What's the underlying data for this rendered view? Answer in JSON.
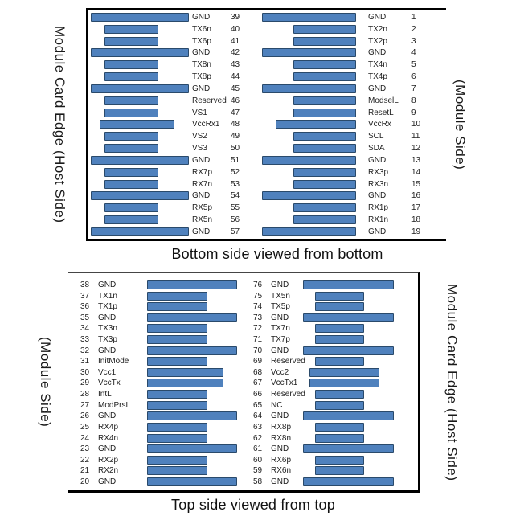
{
  "colors": {
    "pad_fill": "#4f81bd",
    "pad_border": "#2a4a6b",
    "panel_border": "#000000"
  },
  "panels": [
    {
      "title": "Bottom side viewed from bottom",
      "left_label": "Module Card Edge (Host Side)",
      "right_label": "(Module Side)",
      "columns": [
        {
          "order": "bar-first",
          "pins": [
            {
              "num": 39,
              "name": "GND",
              "size": "long"
            },
            {
              "num": 40,
              "name": "TX6n",
              "size": "short"
            },
            {
              "num": 41,
              "name": "TX6p",
              "size": "short"
            },
            {
              "num": 42,
              "name": "GND",
              "size": "long"
            },
            {
              "num": 43,
              "name": "TX8n",
              "size": "short"
            },
            {
              "num": 44,
              "name": "TX8p",
              "size": "short"
            },
            {
              "num": 45,
              "name": "GND",
              "size": "long"
            },
            {
              "num": 46,
              "name": "Reserved",
              "size": "short"
            },
            {
              "num": 47,
              "name": "VS1",
              "size": "short"
            },
            {
              "num": 48,
              "name": "VccRx1",
              "size": "med"
            },
            {
              "num": 49,
              "name": "VS2",
              "size": "short"
            },
            {
              "num": 50,
              "name": "VS3",
              "size": "short"
            },
            {
              "num": 51,
              "name": "GND",
              "size": "long"
            },
            {
              "num": 52,
              "name": "RX7p",
              "size": "short"
            },
            {
              "num": 53,
              "name": "RX7n",
              "size": "short"
            },
            {
              "num": 54,
              "name": "GND",
              "size": "long"
            },
            {
              "num": 55,
              "name": "RX5p",
              "size": "short"
            },
            {
              "num": 56,
              "name": "RX5n",
              "size": "short"
            },
            {
              "num": 57,
              "name": "GND",
              "size": "long"
            }
          ]
        },
        {
          "order": "bar-first",
          "pins": [
            {
              "num": 1,
              "name": "GND",
              "size": "long"
            },
            {
              "num": 2,
              "name": "TX2n",
              "size": "short"
            },
            {
              "num": 3,
              "name": "TX2p",
              "size": "short"
            },
            {
              "num": 4,
              "name": "GND",
              "size": "long"
            },
            {
              "num": 5,
              "name": "TX4n",
              "size": "short"
            },
            {
              "num": 6,
              "name": "TX4p",
              "size": "short"
            },
            {
              "num": 7,
              "name": "GND",
              "size": "long"
            },
            {
              "num": 8,
              "name": "ModselL",
              "size": "short"
            },
            {
              "num": 9,
              "name": "ResetL",
              "size": "short"
            },
            {
              "num": 10,
              "name": "VccRx",
              "size": "med"
            },
            {
              "num": 11,
              "name": "SCL",
              "size": "short"
            },
            {
              "num": 12,
              "name": "SDA",
              "size": "short"
            },
            {
              "num": 13,
              "name": "GND",
              "size": "long"
            },
            {
              "num": 14,
              "name": "RX3p",
              "size": "short"
            },
            {
              "num": 15,
              "name": "RX3n",
              "size": "short"
            },
            {
              "num": 16,
              "name": "GND",
              "size": "long"
            },
            {
              "num": 17,
              "name": "RX1p",
              "size": "short"
            },
            {
              "num": 18,
              "name": "RX1n",
              "size": "short"
            },
            {
              "num": 19,
              "name": "GND",
              "size": "long"
            }
          ]
        }
      ]
    },
    {
      "title": "Top side viewed from top",
      "left_label": "(Module Side)",
      "right_label": "Module Card Edge (Host Side)",
      "columns": [
        {
          "order": "num-first",
          "pins": [
            {
              "num": 38,
              "name": "GND",
              "size": "long"
            },
            {
              "num": 37,
              "name": "TX1n",
              "size": "short"
            },
            {
              "num": 36,
              "name": "TX1p",
              "size": "short"
            },
            {
              "num": 35,
              "name": "GND",
              "size": "long"
            },
            {
              "num": 34,
              "name": "TX3n",
              "size": "short"
            },
            {
              "num": 33,
              "name": "TX3p",
              "size": "short"
            },
            {
              "num": 32,
              "name": "GND",
              "size": "long"
            },
            {
              "num": 31,
              "name": "InitMode",
              "size": "short"
            },
            {
              "num": 30,
              "name": "Vcc1",
              "size": "med"
            },
            {
              "num": 29,
              "name": "VccTx",
              "size": "med"
            },
            {
              "num": 28,
              "name": "IntL",
              "size": "short"
            },
            {
              "num": 27,
              "name": "ModPrsL",
              "size": "short"
            },
            {
              "num": 26,
              "name": "GND",
              "size": "long"
            },
            {
              "num": 25,
              "name": "RX4p",
              "size": "short"
            },
            {
              "num": 24,
              "name": "RX4n",
              "size": "short"
            },
            {
              "num": 23,
              "name": "GND",
              "size": "long"
            },
            {
              "num": 22,
              "name": "RX2p",
              "size": "short"
            },
            {
              "num": 21,
              "name": "RX2n",
              "size": "short"
            },
            {
              "num": 20,
              "name": "GND",
              "size": "long"
            }
          ]
        },
        {
          "order": "num-first",
          "pins": [
            {
              "num": 76,
              "name": "GND",
              "size": "long"
            },
            {
              "num": 75,
              "name": "TX5n",
              "size": "short"
            },
            {
              "num": 74,
              "name": "TX5p",
              "size": "short"
            },
            {
              "num": 73,
              "name": "GND",
              "size": "long"
            },
            {
              "num": 72,
              "name": "TX7n",
              "size": "short"
            },
            {
              "num": 71,
              "name": "TX7p",
              "size": "short"
            },
            {
              "num": 70,
              "name": "GND",
              "size": "long"
            },
            {
              "num": 69,
              "name": "Reserved",
              "size": "short"
            },
            {
              "num": 68,
              "name": "Vcc2",
              "size": "med"
            },
            {
              "num": 67,
              "name": "VccTx1",
              "size": "med"
            },
            {
              "num": 66,
              "name": "Reserved",
              "size": "short"
            },
            {
              "num": 65,
              "name": "NC",
              "size": "short"
            },
            {
              "num": 64,
              "name": "GND",
              "size": "long"
            },
            {
              "num": 63,
              "name": "RX8p",
              "size": "short"
            },
            {
              "num": 62,
              "name": "RX8n",
              "size": "short"
            },
            {
              "num": 61,
              "name": "GND",
              "size": "long"
            },
            {
              "num": 60,
              "name": "RX6p",
              "size": "short"
            },
            {
              "num": 59,
              "name": "RX6n",
              "size": "short"
            },
            {
              "num": 58,
              "name": "GND",
              "size": "long"
            }
          ]
        }
      ]
    }
  ]
}
